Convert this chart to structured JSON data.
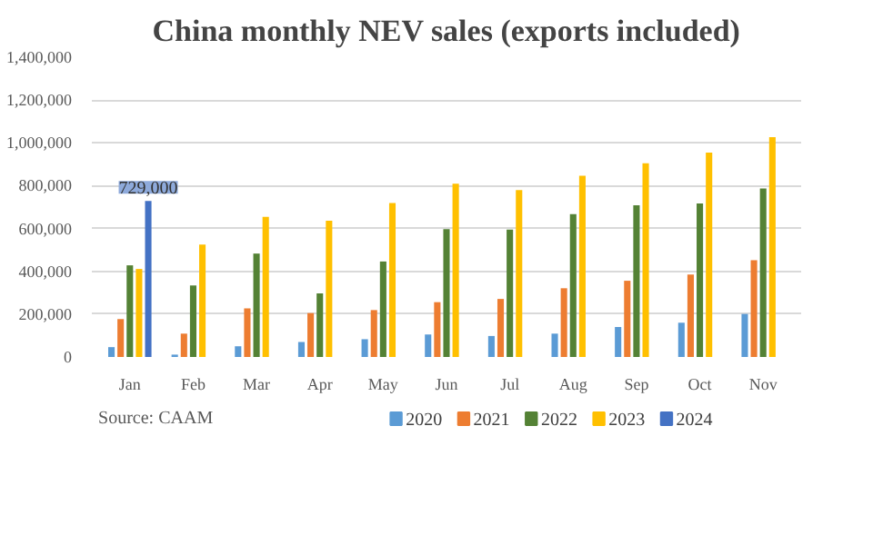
{
  "chart_data": {
    "type": "bar",
    "title": "China monthly NEV sales (exports included)",
    "categories": [
      "Jan",
      "Feb",
      "Mar",
      "Apr",
      "May",
      "Jun",
      "Jul",
      "Aug",
      "Sep",
      "Oct",
      "Nov"
    ],
    "series": [
      {
        "name": "2020",
        "color": "#5b9bd5",
        "values": [
          46000,
          11000,
          50000,
          70000,
          83000,
          105000,
          98000,
          109000,
          140000,
          160000,
          201000
        ]
      },
      {
        "name": "2021",
        "color": "#ed7d31",
        "values": [
          177000,
          109000,
          227000,
          205000,
          219000,
          256000,
          271000,
          321000,
          356000,
          385000,
          452000
        ]
      },
      {
        "name": "2022",
        "color": "#548235",
        "values": [
          428000,
          334000,
          483000,
          297000,
          446000,
          597000,
          595000,
          667000,
          708000,
          717000,
          787000
        ]
      },
      {
        "name": "2023",
        "color": "#ffc000",
        "values": [
          411000,
          525000,
          654000,
          636000,
          719000,
          809000,
          780000,
          846000,
          905000,
          955000,
          1027000
        ]
      },
      {
        "name": "2024",
        "color": "#4472c4",
        "values": [
          729000,
          null,
          null,
          null,
          null,
          null,
          null,
          null,
          null,
          null,
          null
        ],
        "value_labels": [
          "729,000",
          null,
          null,
          null,
          null,
          null,
          null,
          null,
          null,
          null,
          null
        ]
      }
    ],
    "ylim": [
      0,
      1400000
    ],
    "yticks": [
      0,
      {
        "value": 200000,
        "label": "200,000"
      },
      {
        "value": 400000,
        "label": "400,000"
      },
      {
        "value": 600000,
        "label": "600,000"
      },
      {
        "value": 800000,
        "label": "800,000"
      },
      {
        "value": 1000000,
        "label": "1,000,000"
      },
      {
        "value": 1200000,
        "label": "1,200,000"
      },
      {
        "value": 1400000,
        "label": "1,400,000"
      }
    ],
    "grid": "y",
    "legend": "bottom",
    "annotations": [
      "Source: CAAM"
    ]
  }
}
